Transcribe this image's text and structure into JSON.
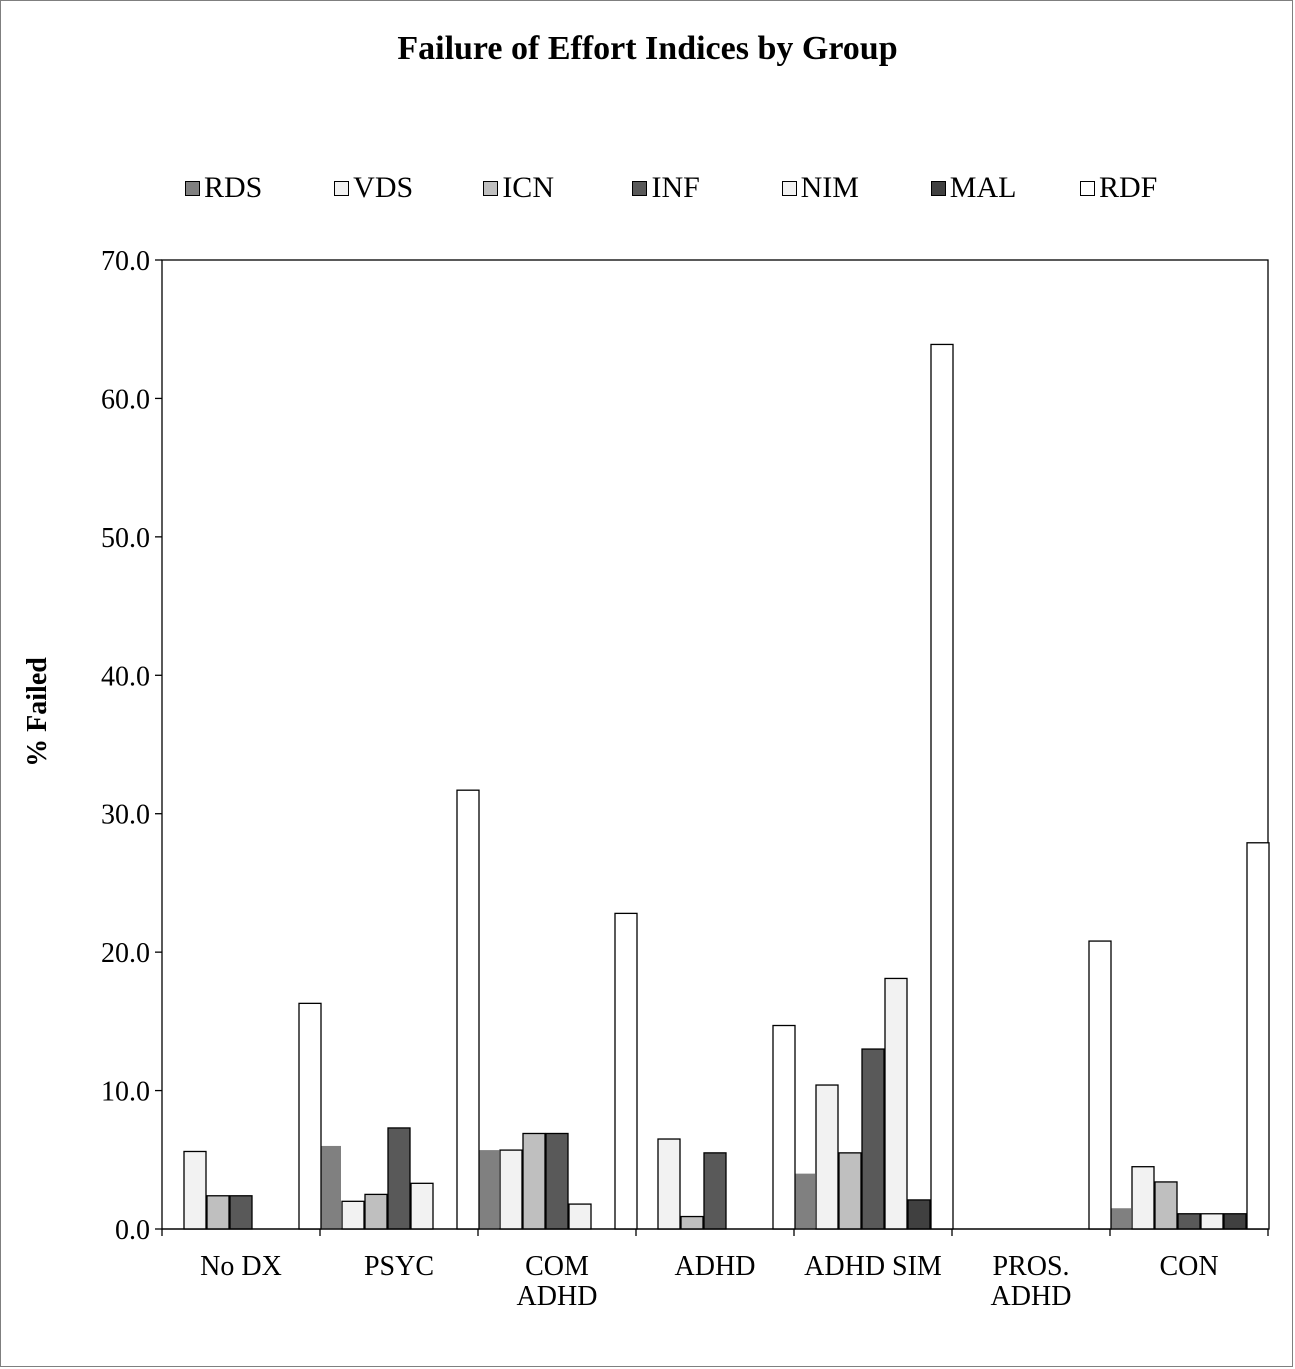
{
  "chart_data": {
    "type": "bar",
    "title": "Failure of Effort Indices by Group",
    "xlabel": "",
    "ylabel": "% Failed",
    "ylim": [
      0,
      70
    ],
    "yticks": [
      "0.0",
      "10.0",
      "20.0",
      "30.0",
      "40.0",
      "50.0",
      "60.0",
      "70.0"
    ],
    "legend_position": "top",
    "grid": false,
    "categories": [
      "No DX",
      "PSYC",
      "COM ADHD",
      "ADHD",
      "ADHD SIM",
      "PROS. ADHD",
      "CON"
    ],
    "category_labels": [
      [
        "No DX"
      ],
      [
        "PSYC"
      ],
      [
        "COM",
        "ADHD"
      ],
      [
        "ADHD"
      ],
      [
        "ADHD SIM"
      ],
      [
        "PROS.",
        "ADHD"
      ],
      [
        "CON"
      ]
    ],
    "series": [
      {
        "name": "RDS",
        "color": "#808080",
        "values": [
          0,
          6.0,
          5.7,
          0,
          4.0,
          0,
          1.5
        ]
      },
      {
        "name": "VDS",
        "color": "#f2f2f2",
        "values": [
          5.6,
          2.0,
          5.7,
          6.5,
          10.4,
          0,
          4.5
        ]
      },
      {
        "name": "ICN",
        "color": "#bfbfbf",
        "values": [
          2.4,
          2.5,
          6.9,
          0.9,
          5.5,
          0,
          3.4
        ]
      },
      {
        "name": "INF",
        "color": "#595959",
        "values": [
          2.4,
          7.3,
          6.9,
          5.5,
          13.0,
          0,
          1.1
        ]
      },
      {
        "name": "NIM",
        "color": "#f2f2f2",
        "values": [
          0,
          3.3,
          1.8,
          0,
          18.1,
          0,
          1.1
        ]
      },
      {
        "name": "MAL",
        "color": "#404040",
        "values": [
          0,
          0,
          0,
          0,
          2.1,
          0,
          1.1
        ]
      },
      {
        "name": "RDF",
        "color": "#ffffff",
        "values": [
          16.3,
          31.7,
          22.8,
          14.7,
          63.9,
          20.8,
          27.9
        ]
      }
    ]
  }
}
